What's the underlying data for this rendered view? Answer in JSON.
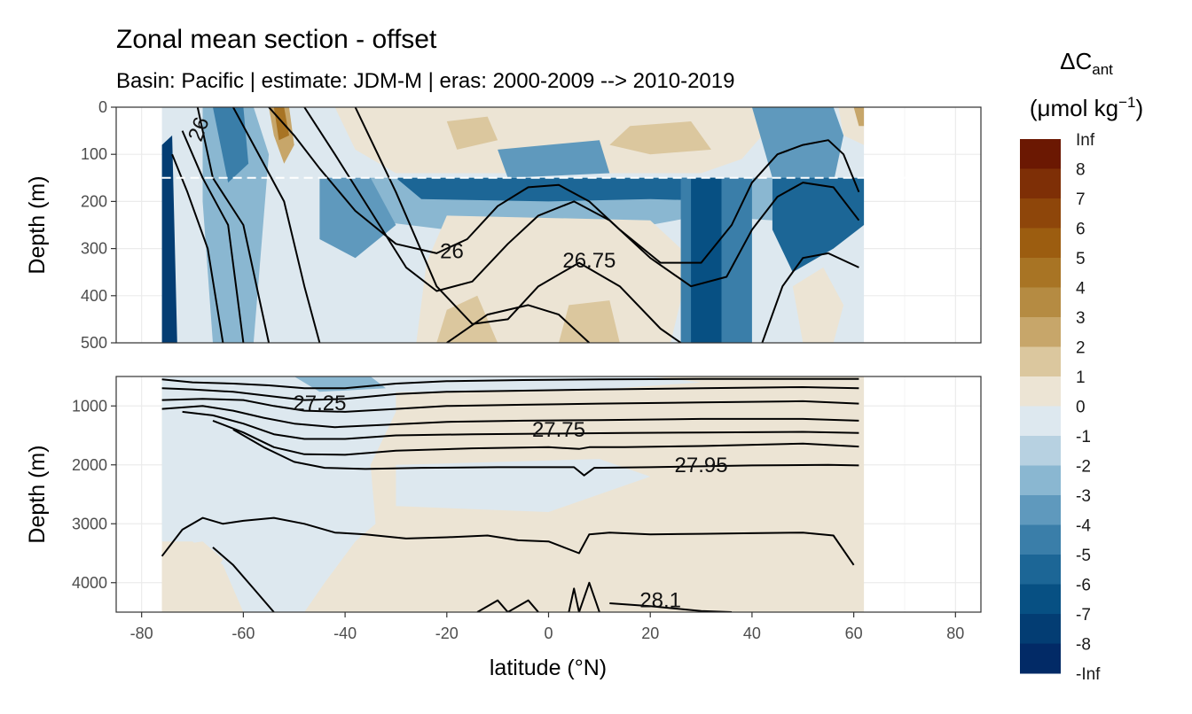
{
  "chart_data": {
    "type": "contour",
    "title": "Zonal mean section - offset",
    "subtitle": "Basin: Pacific | estimate: JDM-M | eras: 2000-2009 --> 2010-2019",
    "xlabel": "latitude (°N)",
    "ylabel": "Depth (m)",
    "xlim": [
      -85,
      85
    ],
    "x_ticks": [
      -80,
      -60,
      -40,
      -20,
      0,
      20,
      40,
      60,
      80
    ],
    "x_tick_labels": [
      "-80",
      "-60",
      "-40",
      "-20",
      "0",
      "20",
      "40",
      "60",
      "80"
    ],
    "data_lat_range": [
      -76,
      62
    ],
    "mld_depth": 150,
    "panels": [
      {
        "name": "upper",
        "ylim": [
          0,
          500
        ],
        "y_ticks": [
          0,
          100,
          200,
          300,
          400,
          500
        ],
        "y_tick_labels": [
          "0",
          "100",
          "200",
          "300",
          "400",
          "500"
        ]
      },
      {
        "name": "lower",
        "ylim": [
          500,
          4500
        ],
        "y_ticks": [
          1000,
          2000,
          3000,
          4000
        ],
        "y_tick_labels": [
          "1000",
          "2000",
          "3000",
          "4000"
        ]
      }
    ],
    "legend": {
      "title_main": "ΔC",
      "title_sub": "ant",
      "unit_main": "(μmol kg",
      "unit_sup": "−1",
      "unit_end": ")",
      "breaks": [
        "Inf",
        "8",
        "7",
        "6",
        "5",
        "4",
        "3",
        "2",
        "1",
        "0",
        "-1",
        "-2",
        "-3",
        "-4",
        "-5",
        "-6",
        "-7",
        "-8",
        "-Inf"
      ],
      "colors": [
        "#6b1802",
        "#7e2f06",
        "#8e460a",
        "#9c5d10",
        "#a87424",
        "#b58b42",
        "#c7a66a",
        "#dbc79e",
        "#ece4d4",
        "#dde8ef",
        "#b7d1e1",
        "#8ab7d1",
        "#5f99bd",
        "#3a7ea9",
        "#1c6696",
        "#075083",
        "#033d73",
        "#022a66",
        "#021a5a"
      ]
    },
    "fields": {
      "fill_neg1": "#dde8ef",
      "fill_pos1": "#ece4d4",
      "fill_n2": "#b7d1e1",
      "fill_n3": "#8ab7d1",
      "fill_n4": "#5f99bd",
      "fill_n5": "#3a7ea9",
      "fill_n6": "#1c6696",
      "fill_n7": "#075083",
      "fill_n8": "#033d73",
      "fill_p2": "#dbc79e",
      "fill_p3": "#c7a66a",
      "fill_p4": "#b58b42",
      "fill_p5": "#a87424"
    },
    "isopycnals": [
      {
        "label": "26",
        "points": [
          [
            -69,
            0
          ],
          [
            -66,
            150
          ],
          [
            -60,
            250
          ],
          [
            -55,
            500
          ]
        ]
      },
      {
        "label": "",
        "points": [
          [
            -72,
            50
          ],
          [
            -68,
            150
          ],
          [
            -63,
            250
          ],
          [
            -60,
            500
          ]
        ]
      },
      {
        "label": "",
        "points": [
          [
            -74,
            100
          ],
          [
            -71,
            180
          ],
          [
            -67,
            300
          ],
          [
            -64,
            500
          ]
        ]
      },
      {
        "label": "",
        "points": [
          [
            -62,
            0
          ],
          [
            -58,
            80
          ],
          [
            -52,
            200
          ],
          [
            -48,
            380
          ],
          [
            -45,
            500
          ]
        ]
      },
      {
        "label": "",
        "points": [
          [
            -55,
            0
          ],
          [
            -50,
            60
          ],
          [
            -45,
            130
          ],
          [
            -38,
            220
          ],
          [
            -30,
            290
          ],
          [
            -22,
            310
          ],
          [
            -16,
            280
          ],
          [
            -10,
            210
          ],
          [
            -4,
            170
          ],
          [
            2,
            165
          ],
          [
            8,
            200
          ],
          [
            14,
            260
          ],
          [
            22,
            330
          ],
          [
            30,
            330
          ],
          [
            36,
            250
          ],
          [
            40,
            160
          ],
          [
            45,
            100
          ],
          [
            50,
            80
          ],
          [
            55,
            70
          ],
          [
            58,
            100
          ],
          [
            61,
            180
          ]
        ]
      },
      {
        "label": "26",
        "points": [
          [
            -19,
            305
          ]
        ]
      },
      {
        "label": "",
        "points": [
          [
            -48,
            0
          ],
          [
            -42,
            100
          ],
          [
            -35,
            220
          ],
          [
            -28,
            340
          ],
          [
            -22,
            390
          ],
          [
            -15,
            370
          ],
          [
            -8,
            290
          ],
          [
            -2,
            230
          ],
          [
            5,
            200
          ],
          [
            12,
            240
          ],
          [
            20,
            320
          ],
          [
            28,
            380
          ],
          [
            35,
            360
          ],
          [
            40,
            260
          ],
          [
            45,
            190
          ],
          [
            50,
            160
          ],
          [
            56,
            170
          ],
          [
            61,
            240
          ]
        ]
      },
      {
        "label": "26.75",
        "points": [
          [
            -38,
            0
          ],
          [
            -30,
            180
          ],
          [
            -22,
            380
          ],
          [
            -15,
            460
          ],
          [
            -8,
            450
          ],
          [
            -2,
            380
          ],
          [
            6,
            330
          ],
          [
            14,
            380
          ],
          [
            22,
            470
          ],
          [
            26,
            500
          ]
        ]
      },
      {
        "label": "26.75",
        "points": [
          [
            8,
            325
          ]
        ]
      },
      {
        "label": "",
        "points": [
          [
            42,
            500
          ],
          [
            46,
            380
          ],
          [
            50,
            320
          ],
          [
            55,
            310
          ],
          [
            61,
            340
          ]
        ]
      },
      {
        "label": "",
        "points": [
          [
            -20,
            500
          ],
          [
            -12,
            440
          ],
          [
            -4,
            420
          ],
          [
            2,
            440
          ],
          [
            8,
            500
          ]
        ]
      },
      {
        "label": "27.25",
        "points": [
          [
            -45,
            950
          ]
        ]
      },
      {
        "label": "27.75",
        "points": [
          [
            2,
            1400
          ]
        ]
      },
      {
        "label": "27.95",
        "points": [
          [
            30,
            2000
          ]
        ]
      },
      {
        "label": "28.1",
        "points": [
          [
            22,
            4300
          ]
        ]
      }
    ],
    "lower_isopycnals": [
      {
        "points": [
          [
            -76,
            550
          ],
          [
            -70,
            600
          ],
          [
            -62,
            620
          ],
          [
            -55,
            650
          ],
          [
            -48,
            700
          ],
          [
            -40,
            700
          ],
          [
            -30,
            620
          ],
          [
            -20,
            580
          ],
          [
            -5,
            560
          ],
          [
            10,
            550
          ],
          [
            30,
            540
          ],
          [
            50,
            540
          ],
          [
            61,
            540
          ]
        ]
      },
      {
        "points": [
          [
            -76,
            700
          ],
          [
            -70,
            720
          ],
          [
            -62,
            760
          ],
          [
            -54,
            840
          ],
          [
            -48,
            900
          ],
          [
            -40,
            880
          ],
          [
            -30,
            800
          ],
          [
            -20,
            760
          ],
          [
            -5,
            740
          ],
          [
            10,
            720
          ],
          [
            30,
            700
          ],
          [
            50,
            680
          ],
          [
            61,
            700
          ]
        ]
      },
      {
        "points": [
          [
            -76,
            900
          ],
          [
            -68,
            880
          ],
          [
            -60,
            900
          ],
          [
            -54,
            1000
          ],
          [
            -48,
            1080
          ],
          [
            -40,
            1100
          ],
          [
            -30,
            1050
          ],
          [
            -20,
            1000
          ],
          [
            -5,
            980
          ],
          [
            10,
            960
          ],
          [
            30,
            940
          ],
          [
            50,
            920
          ],
          [
            61,
            960
          ]
        ]
      },
      {
        "points": [
          [
            -76,
            1050
          ],
          [
            -68,
            1000
          ],
          [
            -62,
            1080
          ],
          [
            -56,
            1200
          ],
          [
            -50,
            1300
          ],
          [
            -42,
            1360
          ],
          [
            -32,
            1320
          ],
          [
            -20,
            1270
          ],
          [
            -5,
            1250
          ],
          [
            10,
            1240
          ],
          [
            30,
            1220
          ],
          [
            50,
            1220
          ],
          [
            61,
            1250
          ]
        ]
      },
      {
        "points": [
          [
            -72,
            1100
          ],
          [
            -66,
            1160
          ],
          [
            -60,
            1300
          ],
          [
            -54,
            1480
          ],
          [
            -48,
            1560
          ],
          [
            -40,
            1560
          ],
          [
            -30,
            1500
          ],
          [
            -15,
            1480
          ],
          [
            0,
            1470
          ],
          [
            15,
            1460
          ],
          [
            30,
            1450
          ],
          [
            50,
            1440
          ],
          [
            61,
            1460
          ]
        ]
      },
      {
        "points": [
          [
            -66,
            1250
          ],
          [
            -60,
            1450
          ],
          [
            -54,
            1700
          ],
          [
            -48,
            1820
          ],
          [
            -40,
            1830
          ],
          [
            -30,
            1760
          ],
          [
            -15,
            1720
          ],
          [
            0,
            1700
          ],
          [
            6,
            1730
          ],
          [
            8,
            1700
          ],
          [
            15,
            1700
          ],
          [
            30,
            1680
          ],
          [
            50,
            1640
          ],
          [
            61,
            1690
          ]
        ]
      },
      {
        "points": [
          [
            -62,
            1400
          ],
          [
            -56,
            1700
          ],
          [
            -50,
            1950
          ],
          [
            -44,
            2050
          ],
          [
            -36,
            2070
          ],
          [
            -25,
            2050
          ],
          [
            -10,
            2040
          ],
          [
            5,
            2040
          ],
          [
            7,
            2180
          ],
          [
            9,
            2050
          ],
          [
            20,
            2040
          ],
          [
            40,
            2010
          ],
          [
            55,
            2000
          ],
          [
            61,
            2010
          ]
        ]
      },
      {
        "points": [
          [
            -76,
            3550
          ],
          [
            -72,
            3100
          ],
          [
            -68,
            2900
          ],
          [
            -64,
            3000
          ],
          [
            -60,
            2950
          ],
          [
            -54,
            2900
          ],
          [
            -48,
            3000
          ],
          [
            -42,
            3150
          ],
          [
            -36,
            3180
          ],
          [
            -28,
            3250
          ],
          [
            -20,
            3230
          ],
          [
            -12,
            3200
          ],
          [
            -6,
            3280
          ],
          [
            0,
            3300
          ],
          [
            6,
            3500
          ],
          [
            8,
            3180
          ],
          [
            12,
            3150
          ],
          [
            20,
            3180
          ],
          [
            30,
            3170
          ],
          [
            40,
            3160
          ],
          [
            50,
            3150
          ],
          [
            56,
            3200
          ],
          [
            60,
            3700
          ]
        ]
      },
      {
        "points": [
          [
            -66,
            3400
          ],
          [
            -62,
            3700
          ],
          [
            -58,
            4100
          ],
          [
            -54,
            4500
          ]
        ]
      },
      {
        "points": [
          [
            -14,
            4500
          ],
          [
            -10,
            4300
          ],
          [
            -8,
            4500
          ],
          [
            -4,
            4300
          ],
          [
            -2,
            4500
          ]
        ]
      },
      {
        "points": [
          [
            4,
            4500
          ],
          [
            5,
            4100
          ],
          [
            6,
            4500
          ],
          [
            8,
            4000
          ],
          [
            10,
            4500
          ]
        ]
      },
      {
        "points": [
          [
            12,
            4350
          ],
          [
            20,
            4400
          ],
          [
            30,
            4480
          ],
          [
            36,
            4500
          ]
        ]
      }
    ]
  }
}
